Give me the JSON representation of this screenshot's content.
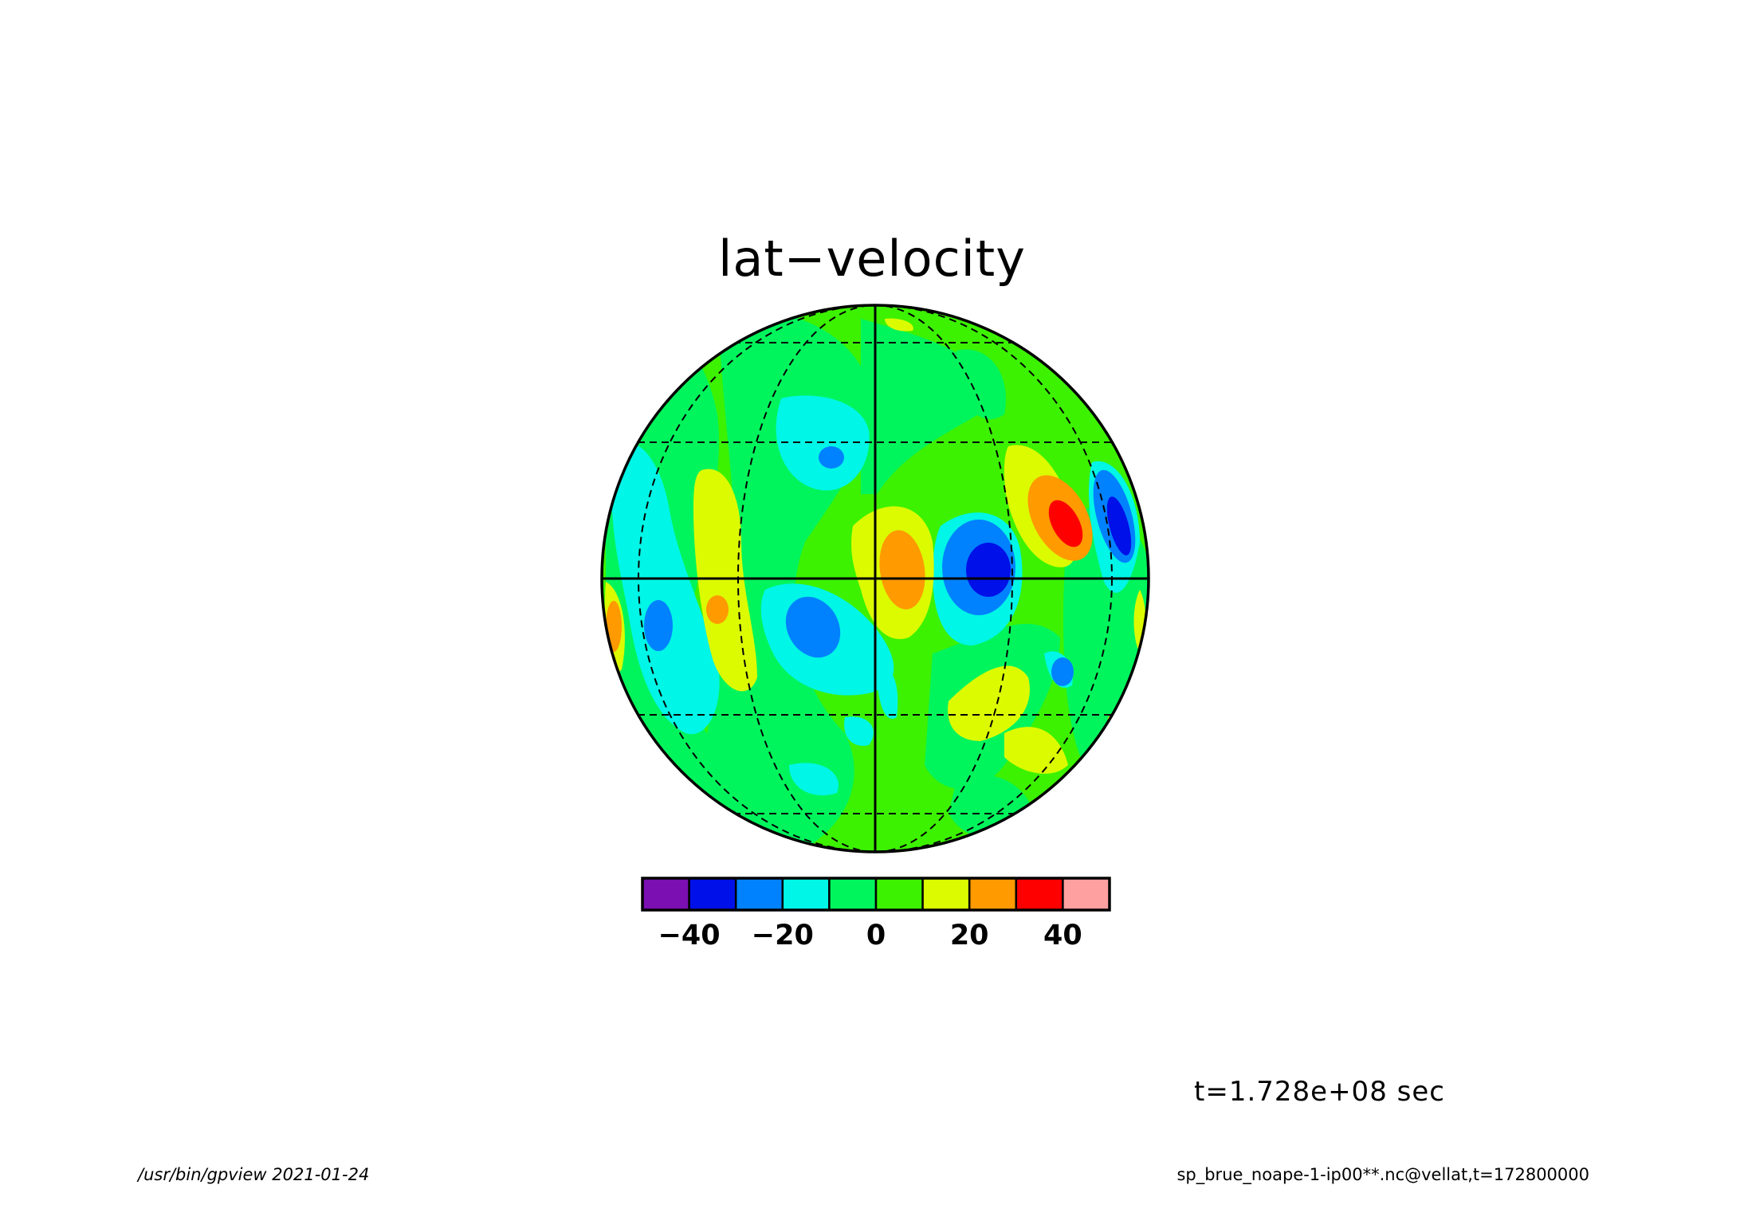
{
  "figure": {
    "title": "lat−velocity",
    "time_label": "t=1.728e+08 sec",
    "footer_left": "/usr/bin/gpview  2021-01-24",
    "footer_right": "sp_brue_noape-1-ip00**.nc@vellat,t=172800000"
  },
  "map": {
    "projection": "orthographic",
    "field": "lat-velocity",
    "graticule": {
      "style": "dashed",
      "solid_lines": [
        "equator",
        "central meridian"
      ]
    }
  },
  "colorbar": {
    "colors": [
      "#7b0fb2",
      "#0010e8",
      "#0082ff",
      "#00f6e6",
      "#00f55c",
      "#3cf200",
      "#dcfb00",
      "#ff9a00",
      "#ff0000",
      "#ffa0a0"
    ],
    "ticks": [
      {
        "label": "−40",
        "value": -40
      },
      {
        "label": "−20",
        "value": -20
      },
      {
        "label": "0",
        "value": 0
      },
      {
        "label": "20",
        "value": 20
      },
      {
        "label": "40",
        "value": 40
      }
    ],
    "range": [
      -50,
      50
    ]
  }
}
